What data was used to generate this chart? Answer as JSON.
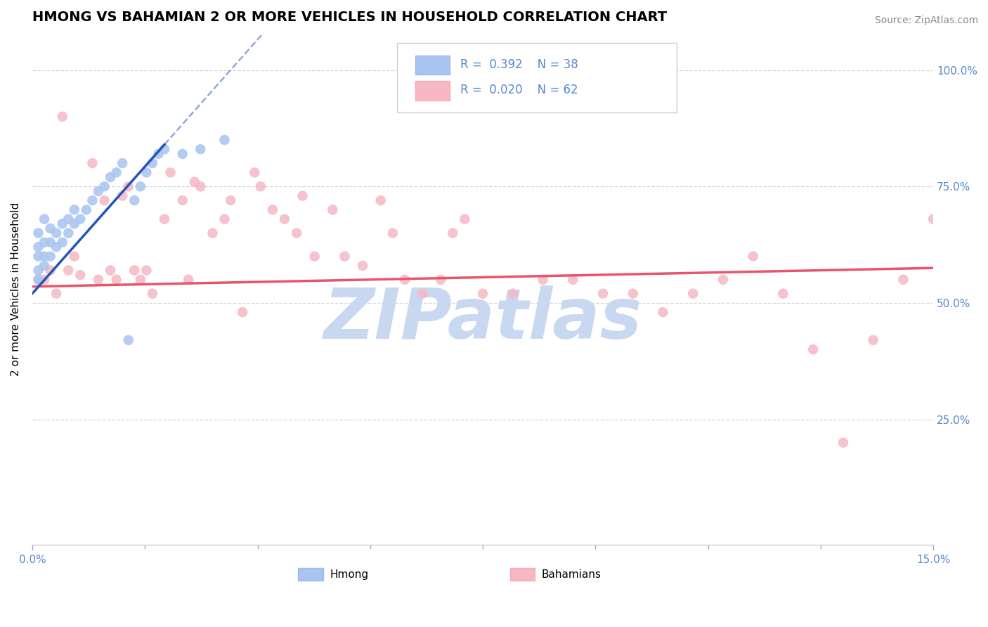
{
  "title": "HMONG VS BAHAMIAN 2 OR MORE VEHICLES IN HOUSEHOLD CORRELATION CHART",
  "source_text": "Source: ZipAtlas.com",
  "ylabel": "2 or more Vehicles in Household",
  "xlim": [
    0.0,
    0.15
  ],
  "ylim": [
    -0.02,
    1.08
  ],
  "hmong_color": "#a8c4f0",
  "bahamian_color": "#f5b8c4",
  "trendline_hmong_color": "#2255bb",
  "trendline_bahamian_color": "#e8556a",
  "grid_color": "#cccccc",
  "watermark_text": "ZIPatlas",
  "watermark_color": "#c8d8f0",
  "title_fontsize": 14,
  "label_fontsize": 11,
  "tick_fontsize": 11,
  "tick_color": "#5588cc",
  "legend_text_color": "#5588cc",
  "source_color": "#888888",
  "hmong_x": [
    0.001,
    0.001,
    0.001,
    0.001,
    0.001,
    0.002,
    0.002,
    0.002,
    0.002,
    0.003,
    0.003,
    0.003,
    0.004,
    0.004,
    0.005,
    0.005,
    0.006,
    0.006,
    0.007,
    0.007,
    0.008,
    0.009,
    0.01,
    0.011,
    0.012,
    0.013,
    0.014,
    0.015,
    0.016,
    0.017,
    0.018,
    0.019,
    0.02,
    0.021,
    0.022,
    0.025,
    0.028,
    0.032
  ],
  "hmong_y": [
    0.55,
    0.57,
    0.6,
    0.62,
    0.65,
    0.58,
    0.6,
    0.63,
    0.68,
    0.6,
    0.63,
    0.66,
    0.62,
    0.65,
    0.63,
    0.67,
    0.65,
    0.68,
    0.67,
    0.7,
    0.68,
    0.7,
    0.72,
    0.74,
    0.75,
    0.77,
    0.78,
    0.8,
    0.42,
    0.72,
    0.75,
    0.78,
    0.8,
    0.82,
    0.83,
    0.82,
    0.83,
    0.85
  ],
  "bahamian_x": [
    0.001,
    0.002,
    0.003,
    0.004,
    0.005,
    0.006,
    0.007,
    0.008,
    0.01,
    0.011,
    0.012,
    0.013,
    0.014,
    0.015,
    0.016,
    0.017,
    0.018,
    0.019,
    0.02,
    0.022,
    0.023,
    0.025,
    0.026,
    0.027,
    0.028,
    0.03,
    0.032,
    0.033,
    0.035,
    0.037,
    0.038,
    0.04,
    0.042,
    0.044,
    0.045,
    0.047,
    0.05,
    0.052,
    0.055,
    0.058,
    0.06,
    0.062,
    0.065,
    0.068,
    0.07,
    0.072,
    0.075,
    0.08,
    0.085,
    0.09,
    0.095,
    0.1,
    0.105,
    0.11,
    0.115,
    0.12,
    0.125,
    0.13,
    0.135,
    0.14,
    0.145,
    0.15
  ],
  "bahamian_y": [
    0.55,
    0.55,
    0.57,
    0.52,
    0.9,
    0.57,
    0.6,
    0.56,
    0.8,
    0.55,
    0.72,
    0.57,
    0.55,
    0.73,
    0.75,
    0.57,
    0.55,
    0.57,
    0.52,
    0.68,
    0.78,
    0.72,
    0.55,
    0.76,
    0.75,
    0.65,
    0.68,
    0.72,
    0.48,
    0.78,
    0.75,
    0.7,
    0.68,
    0.65,
    0.73,
    0.6,
    0.7,
    0.6,
    0.58,
    0.72,
    0.65,
    0.55,
    0.52,
    0.55,
    0.65,
    0.68,
    0.52,
    0.52,
    0.55,
    0.55,
    0.52,
    0.52,
    0.48,
    0.52,
    0.55,
    0.6,
    0.52,
    0.4,
    0.2,
    0.42,
    0.55,
    0.68
  ]
}
